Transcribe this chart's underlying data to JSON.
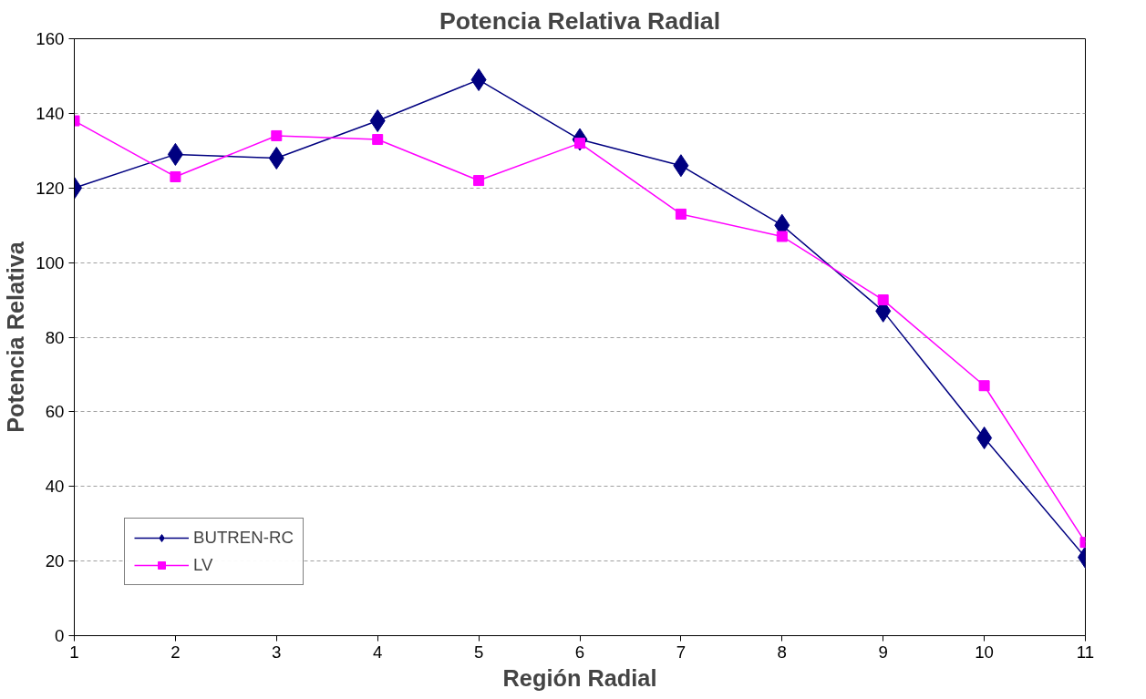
{
  "chart_data": {
    "type": "line",
    "title": "Potencia Relativa Radial",
    "xlabel": "Región Radial",
    "ylabel": "Potencia Relativa",
    "x": [
      1,
      2,
      3,
      4,
      5,
      6,
      7,
      8,
      9,
      10,
      11
    ],
    "series": [
      {
        "name": "BUTREN-RC",
        "color": "#000080",
        "marker": "diamond",
        "values": [
          120,
          129,
          128,
          138,
          149,
          133,
          126,
          110,
          87,
          53,
          21
        ]
      },
      {
        "name": "LV",
        "color": "#ff00ff",
        "marker": "square",
        "values": [
          138,
          123,
          134,
          133,
          122,
          132,
          113,
          107,
          90,
          67,
          25
        ]
      }
    ],
    "xlim": [
      1,
      11
    ],
    "xticks": [
      1,
      2,
      3,
      4,
      5,
      6,
      7,
      8,
      9,
      10,
      11
    ],
    "ylim": [
      0,
      160
    ],
    "yticks": [
      0,
      20,
      40,
      60,
      80,
      100,
      120,
      140,
      160
    ],
    "grid": "y",
    "legend": "bottom left",
    "line_style": "solid"
  }
}
